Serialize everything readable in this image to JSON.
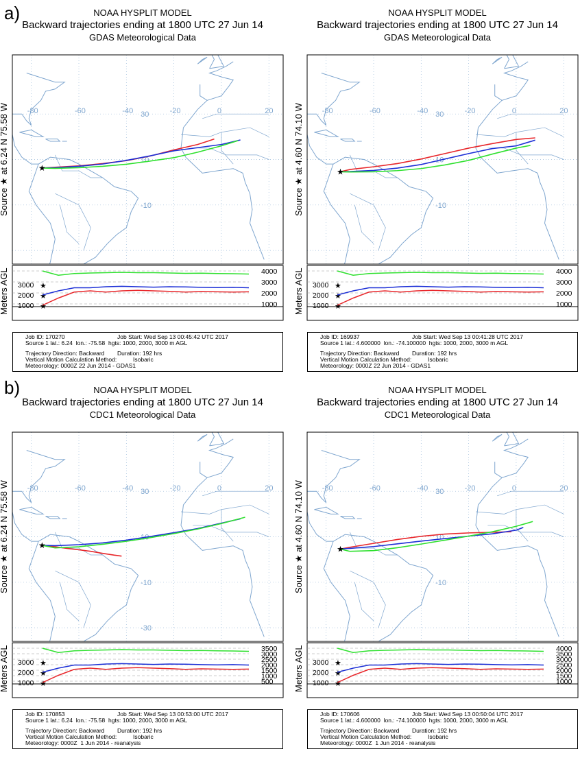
{
  "labels": {
    "a": "a)",
    "b": "b)"
  },
  "common": {
    "model": "NOAA HYSPLIT MODEL",
    "subtitle": "Backward trajectories ending at 1800 UTC 27 Jun 14",
    "side_source": "Source ★ at",
    "side_agl": "Meters AGL",
    "traj_dir": "Trajectory Direction: Backward",
    "duration": "Duration: 192 hrs",
    "vert": "Vertical Motion Calculation Method:",
    "isobaric": "Isobaric"
  },
  "panels": [
    {
      "met": "GDAS Meteorological Data",
      "lat": "6.24 N",
      "lon": "75.58 W",
      "job_id": "Job ID: 170270",
      "job_start": "Job Start: Wed Sep 13 00:45:42 UTC 2017",
      "source_line": "Source 1 lat.: 6.24  lon.: -75.58  hgts: 1000, 2000, 3000 m AGL",
      "meteorology": "Meteorology: 0000Z 22 Jun 2014 - GDAS1",
      "lon_ticks": [
        "-80",
        "-60",
        "-40",
        "-20",
        "0",
        "20"
      ],
      "lat_ticks": [
        "30",
        "10",
        "-10"
      ],
      "left_alt": [
        "3000",
        "2000",
        "1000"
      ],
      "right_alt": [
        "4000",
        "3000",
        "2000",
        "1000"
      ]
    },
    {
      "met": "GDAS Meteorological Data",
      "lat": "4.60 N",
      "lon": "74.10 W",
      "job_id": "Job ID: 169937",
      "job_start": "Job Start: Wed Sep 13 00:41:28 UTC 2017",
      "source_line": "Source 1 lat.: 4.600000  lon.: -74.100000  hgts: 1000, 2000, 3000 m AGL",
      "meteorology": "Meteorology: 0000Z 22 Jun 2014 - GDAS1",
      "lon_ticks": [
        "-80",
        "-60",
        "-40",
        "-20",
        "0",
        "20"
      ],
      "lat_ticks": [
        "30",
        "10",
        "-10"
      ],
      "left_alt": [
        "3000",
        "2000",
        "1000"
      ],
      "right_alt": [
        "4000",
        "3000",
        "2000",
        "1000"
      ]
    },
    {
      "met": "CDC1 Meteorological Data",
      "lat": "6.24 N",
      "lon": "75.58 W",
      "job_id": "Job ID: 170853",
      "job_start": "Job Start: Wed Sep 13 00:53:00 UTC 2017",
      "source_line": "Source 1 lat.: 6.24  lon.: -75.58  hgts: 1000, 2000, 3000 m AGL",
      "meteorology": "Meteorology: 0000Z  1 Jun 2014 - reanalysis",
      "lon_ticks": [
        "-80",
        "-60",
        "-40",
        "-20",
        "0",
        "20"
      ],
      "lat_ticks": [
        "30",
        "10",
        "-10",
        "-30"
      ],
      "left_alt": [
        "3000",
        "2000",
        "1000"
      ],
      "right_alt": [
        "3500",
        "3000",
        "2500",
        "2000",
        "1500",
        "1000",
        "500"
      ]
    },
    {
      "met": "CDC1 Meteorological Data",
      "lat": "4.60 N",
      "lon": "74.10 W",
      "job_id": "Job ID: 170606",
      "job_start": "Job Start: Wed Sep 13 00:50:04 UTC 2017",
      "source_line": "Source 1 lat.: 4.600000  lon.: -74.100000  hgts: 1000, 2000, 3000 m AGL",
      "meteorology": "Meteorology: 0000Z  1 Jun 2014 - reanalysis",
      "lon_ticks": [
        "-80",
        "-60",
        "-40",
        "-20",
        "0",
        "20"
      ],
      "lat_ticks": [
        "30",
        "10",
        "-10"
      ],
      "left_alt": [
        "3000",
        "2000",
        "1000"
      ],
      "right_alt": [
        "4000",
        "3500",
        "3000",
        "2500",
        "2000",
        "1500",
        "1000"
      ]
    }
  ],
  "colors": {
    "red": "#e8262a",
    "blue": "#1c2fd6",
    "green": "#2ee02e",
    "map": "#7fa6cf",
    "grid": "#9bbad9"
  },
  "chart_data": [
    {
      "type": "line",
      "title": "Backward trajectories ending at 1800 UTC 27 Jun 14",
      "source": {
        "lat": 6.24,
        "lon": -75.58
      },
      "series": [
        {
          "name": "1000",
          "color": "red",
          "lon": [
            -75.58,
            -70,
            -60,
            -50,
            -40,
            -30,
            -20,
            -10,
            -5,
            -3
          ],
          "lat": [
            6.24,
            6.6,
            7.2,
            8.2,
            9.5,
            11.5,
            14.2,
            16.6,
            18.3,
            19.0
          ]
        },
        {
          "name": "2000",
          "color": "blue",
          "lon": [
            -75.58,
            -70,
            -60,
            -50,
            -40,
            -30,
            -20,
            -10,
            0,
            8
          ],
          "lat": [
            6.24,
            6.4,
            7.0,
            8.0,
            9.6,
            11.6,
            13.8,
            15.2,
            16.6,
            18.6
          ]
        },
        {
          "name": "3000",
          "color": "green",
          "lon": [
            -75.58,
            -70,
            -60,
            -50,
            -40,
            -30,
            -20,
            -10,
            0,
            7
          ],
          "lat": [
            6.24,
            6.1,
            6.4,
            7.0,
            7.9,
            9.3,
            10.8,
            13.2,
            16.0,
            18.3
          ]
        }
      ]
    },
    {
      "type": "line",
      "title": "Backward trajectories ending at 1800 UTC 27 Jun 14",
      "source": {
        "lat": 4.6,
        "lon": -74.1
      },
      "series": [
        {
          "name": "1000",
          "color": "red",
          "lon": [
            -74.1,
            -70,
            -60,
            -50,
            -40,
            -30,
            -20,
            -10,
            0,
            8
          ],
          "lat": [
            4.6,
            5.6,
            6.8,
            8.2,
            10.2,
            12.6,
            15.0,
            17.0,
            18.8,
            19.5
          ]
        },
        {
          "name": "2000",
          "color": "blue",
          "lon": [
            -74.1,
            -70,
            -60,
            -50,
            -40,
            -30,
            -20,
            -10,
            0,
            8
          ],
          "lat": [
            4.6,
            4.7,
            5.2,
            6.2,
            7.8,
            10.2,
            12.6,
            14.8,
            16.0,
            18.5
          ]
        },
        {
          "name": "3000",
          "color": "green",
          "lon": [
            -74.1,
            -70,
            -60,
            -50,
            -40,
            -30,
            -20,
            -10,
            0,
            6
          ],
          "lat": [
            4.6,
            4.5,
            4.6,
            5.1,
            6.0,
            7.6,
            9.6,
            12.4,
            15.0,
            16.2
          ]
        }
      ]
    },
    {
      "type": "line",
      "title": "Backward trajectories ending at 1800 UTC 27 Jun 14",
      "source": {
        "lat": 6.24,
        "lon": -75.58
      },
      "series": [
        {
          "name": "1000",
          "color": "red",
          "lon": [
            -75.58,
            -70,
            -65,
            -60,
            -55,
            -50,
            -45,
            -42
          ],
          "lat": [
            6.24,
            5.6,
            4.9,
            4.3,
            3.6,
            2.7,
            1.9,
            1.5
          ]
        },
        {
          "name": "2000",
          "color": "blue",
          "lon": [
            -75.58,
            -70,
            -60,
            -50,
            -40,
            -30,
            -20,
            -10,
            0,
            8
          ],
          "lat": [
            6.24,
            6.1,
            6.5,
            7.3,
            8.5,
            10.1,
            11.8,
            13.6,
            16.0,
            17.9
          ]
        },
        {
          "name": "3000",
          "color": "green",
          "lon": [
            -75.58,
            -70,
            -60,
            -50,
            -40,
            -30,
            -20,
            -10,
            0,
            10
          ],
          "lat": [
            6.24,
            5.1,
            5.6,
            6.7,
            8.0,
            9.6,
            11.4,
            13.4,
            15.8,
            18.6
          ]
        }
      ]
    },
    {
      "type": "line",
      "title": "Backward trajectories ending at 1800 UTC 27 Jun 14",
      "source": {
        "lat": 4.6,
        "lon": -74.1
      },
      "series": [
        {
          "name": "1000",
          "color": "red",
          "lon": [
            -74.1,
            -70,
            -60,
            -50,
            -40,
            -30,
            -20,
            -10,
            -2
          ],
          "lat": [
            4.6,
            5.4,
            7.1,
            8.8,
            10.2,
            11.2,
            11.7,
            12.0,
            12.2
          ]
        },
        {
          "name": "2000",
          "color": "blue",
          "lon": [
            -74.1,
            -70,
            -60,
            -50,
            -40,
            -30,
            -20,
            -10,
            0,
            3
          ],
          "lat": [
            4.6,
            4.9,
            5.7,
            6.9,
            8.1,
            9.2,
            10.3,
            11.3,
            12.9,
            14.1
          ]
        },
        {
          "name": "3000",
          "color": "green",
          "lon": [
            -74.1,
            -70,
            -60,
            -50,
            -40,
            -30,
            -20,
            -10,
            0,
            7
          ],
          "lat": [
            4.6,
            3.6,
            3.9,
            5.2,
            6.8,
            8.5,
            10.3,
            12.2,
            14.6,
            16.7
          ]
        }
      ]
    }
  ]
}
